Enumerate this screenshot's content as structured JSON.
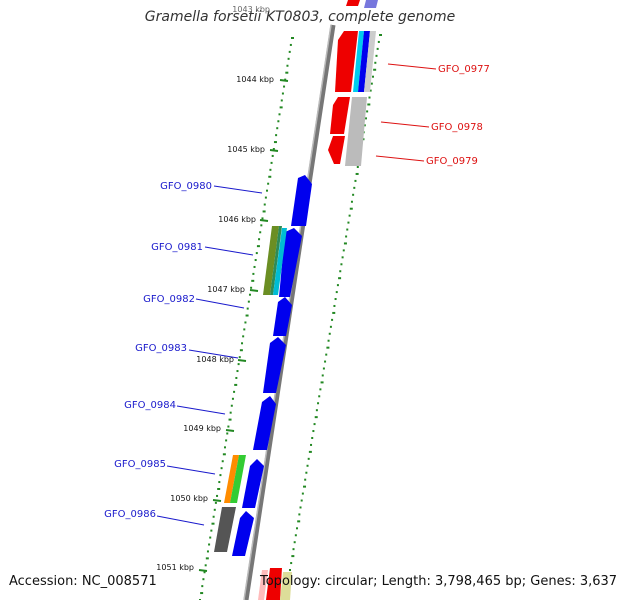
{
  "title": "Gramella forsetii KT0803, complete genome",
  "footer": {
    "accession": "Accession: NC_008571",
    "summary": "Topology: circular; Length: 3,798,465 bp; Genes: 3,637"
  },
  "kbp_labels": [
    "1043 kbp",
    "1044 kbp",
    "1045 kbp",
    "1046 kbp",
    "1047 kbp",
    "1048 kbp",
    "1049 kbp",
    "1050 kbp",
    "1051 kbp"
  ],
  "genes_forward": [
    "GFO_0980",
    "GFO_0981",
    "GFO_0982",
    "GFO_0983",
    "GFO_0984",
    "GFO_0985",
    "GFO_0986"
  ],
  "genes_reverse": [
    "GFO_0977",
    "GFO_0978",
    "GFO_0979"
  ],
  "colors": {
    "forward_gene": "#0000ee",
    "reverse_gene": "#ee0000",
    "forward_label": "#1a1acc",
    "reverse_label": "#dd1111",
    "backbone": "#888888",
    "ticks": "#228822"
  }
}
